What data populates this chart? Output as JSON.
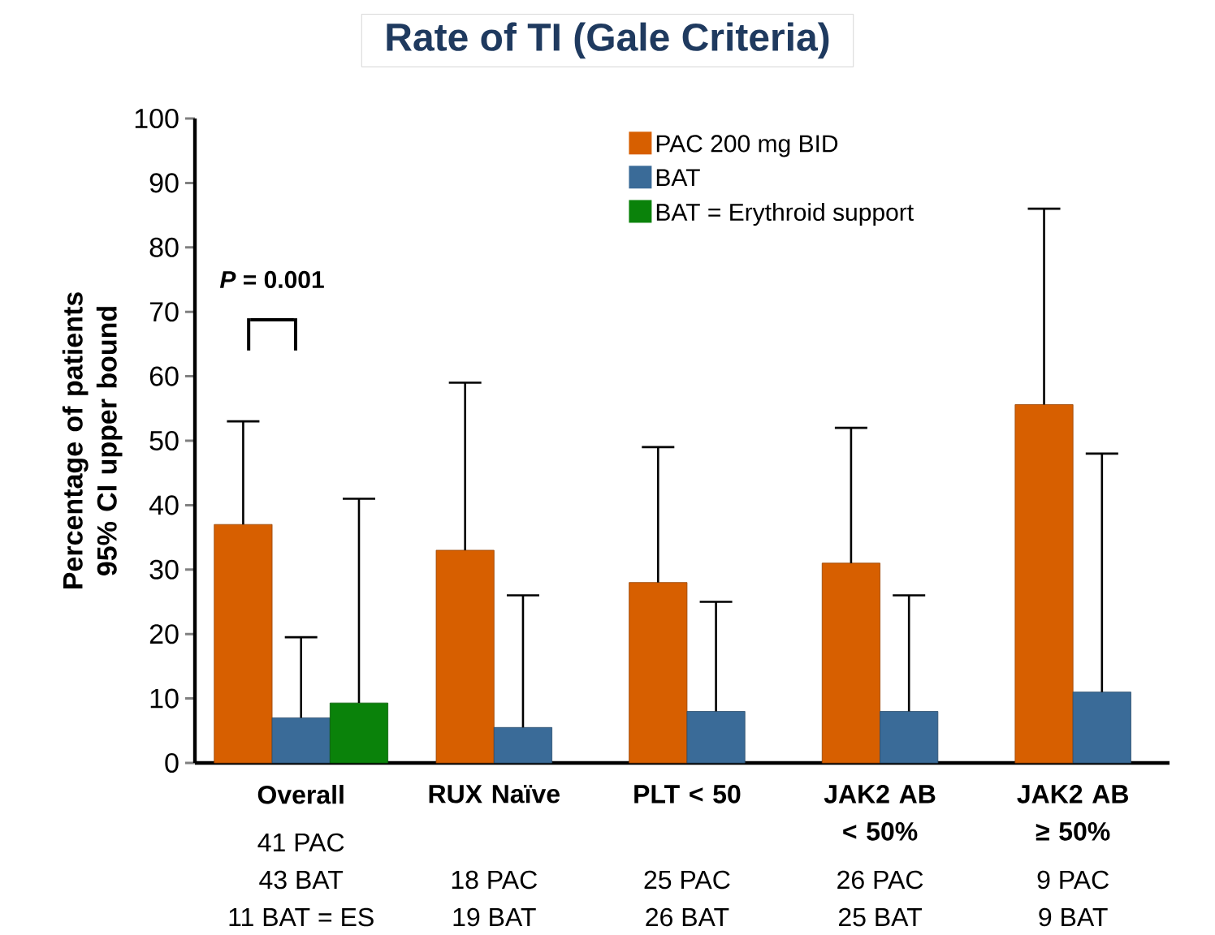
{
  "chart_data": {
    "type": "bar",
    "title": "Rate of TI (Gale Criteria)",
    "ylabel": "Percentage of patients 95% CI upper bound",
    "categories": [
      "Overall",
      "RUX Naïve",
      "PLT < 50",
      "JAK2 AB < 50%",
      "JAK2 AB ≥ 50%"
    ],
    "series": [
      {
        "name": "PAC 200 mg BID",
        "color": "#d75f00",
        "values": [
          37,
          33,
          28,
          31,
          55.6
        ],
        "errors": [
          [
            37,
            53
          ],
          [
            33,
            59
          ],
          [
            28,
            49
          ],
          [
            31,
            52
          ],
          [
            55.6,
            86
          ]
        ]
      },
      {
        "name": "BAT",
        "color": "#3a6b98",
        "values": [
          7,
          5.5,
          8,
          8,
          11
        ],
        "errors": [
          [
            7,
            19.5
          ],
          [
            5.5,
            26
          ],
          [
            8,
            25
          ],
          [
            8,
            26
          ],
          [
            11,
            48
          ]
        ]
      },
      {
        "name": "BAT = Erythroid support",
        "color": "#0a820a",
        "values": [
          9.3,
          null,
          null,
          null,
          null
        ],
        "errors": [
          [
            9.3,
            41
          ],
          null,
          null,
          null,
          null
        ]
      }
    ],
    "ylim": [
      0,
      100
    ],
    "yticks": [
      0,
      10,
      20,
      30,
      40,
      50,
      60,
      70,
      80,
      90,
      100
    ],
    "legend": "top right",
    "annotations": [
      "*P* = 0.001",
      "41 PAC",
      "43 BAT",
      "11 BAT = ES",
      "18 PAC",
      "19 BAT",
      "25 PAC",
      "26 BAT",
      "26 PAC",
      "25 BAT",
      "9 PAC",
      "9 BAT"
    ]
  }
}
